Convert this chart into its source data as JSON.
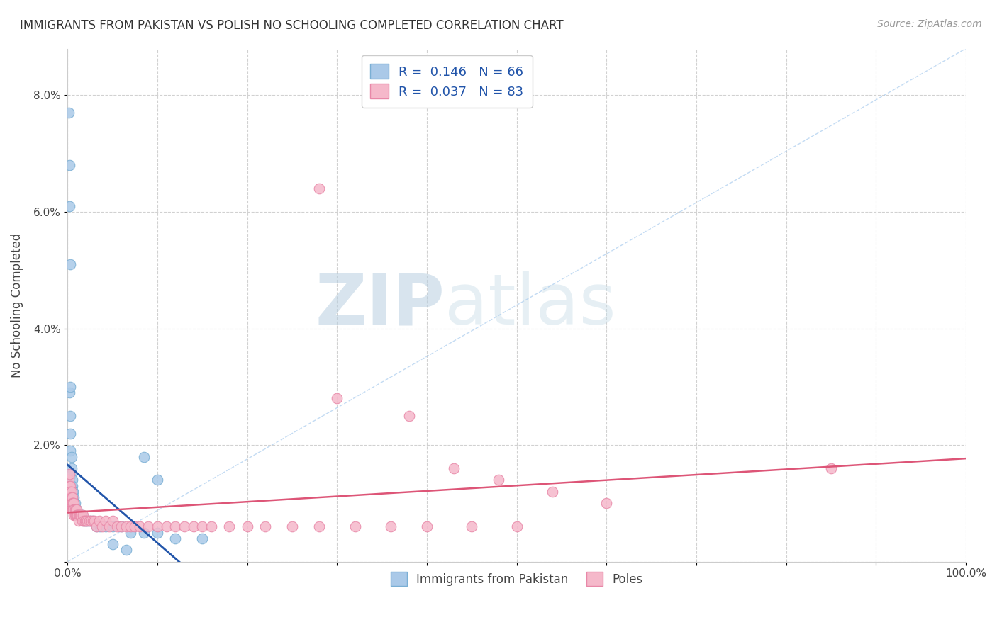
{
  "title": "IMMIGRANTS FROM PAKISTAN VS POLISH NO SCHOOLING COMPLETED CORRELATION CHART",
  "source": "Source: ZipAtlas.com",
  "ylabel": "No Schooling Completed",
  "xlabel": "",
  "xlim": [
    0,
    1.0
  ],
  "ylim": [
    0,
    0.088
  ],
  "xticks": [
    0.0,
    1.0
  ],
  "xticklabels": [
    "0.0%",
    "100.0%"
  ],
  "yticks": [
    0.0,
    0.02,
    0.04,
    0.06,
    0.08
  ],
  "yticklabels": [
    "",
    "2.0%",
    "4.0%",
    "6.0%",
    "8.0%"
  ],
  "pakistan_color": "#aac9e8",
  "pakistan_edge": "#7aafd4",
  "poles_color": "#f5b8ca",
  "poles_edge": "#e888a8",
  "trend_pakistan_color": "#2255aa",
  "trend_poles_color": "#dd5577",
  "R_pakistan": 0.146,
  "N_pakistan": 66,
  "R_poles": 0.037,
  "N_poles": 83,
  "legend_labels": [
    "Immigrants from Pakistan",
    "Poles"
  ],
  "pakistan_x": [
    0.001,
    0.002,
    0.002,
    0.003,
    0.003,
    0.003,
    0.003,
    0.004,
    0.004,
    0.004,
    0.004,
    0.005,
    0.005,
    0.005,
    0.005,
    0.005,
    0.006,
    0.006,
    0.006,
    0.006,
    0.006,
    0.006,
    0.007,
    0.007,
    0.007,
    0.007,
    0.007,
    0.008,
    0.008,
    0.008,
    0.008,
    0.009,
    0.009,
    0.009,
    0.009,
    0.01,
    0.01,
    0.01,
    0.011,
    0.011,
    0.012,
    0.013,
    0.014,
    0.015,
    0.016,
    0.018,
    0.02,
    0.022,
    0.025,
    0.028,
    0.032,
    0.036,
    0.042,
    0.05,
    0.06,
    0.07,
    0.085,
    0.1,
    0.12,
    0.15,
    0.05,
    0.065,
    0.002,
    0.003,
    0.085,
    0.1
  ],
  "pakistan_y": [
    0.077,
    0.068,
    0.029,
    0.03,
    0.025,
    0.022,
    0.019,
    0.018,
    0.016,
    0.015,
    0.013,
    0.014,
    0.013,
    0.012,
    0.012,
    0.011,
    0.012,
    0.011,
    0.011,
    0.01,
    0.01,
    0.01,
    0.011,
    0.01,
    0.01,
    0.009,
    0.009,
    0.01,
    0.009,
    0.009,
    0.009,
    0.009,
    0.009,
    0.008,
    0.008,
    0.009,
    0.008,
    0.008,
    0.008,
    0.008,
    0.008,
    0.008,
    0.008,
    0.008,
    0.008,
    0.007,
    0.007,
    0.007,
    0.007,
    0.007,
    0.006,
    0.006,
    0.006,
    0.006,
    0.006,
    0.005,
    0.005,
    0.005,
    0.004,
    0.004,
    0.003,
    0.002,
    0.061,
    0.051,
    0.018,
    0.014
  ],
  "poles_x": [
    0.001,
    0.001,
    0.002,
    0.002,
    0.002,
    0.003,
    0.003,
    0.003,
    0.003,
    0.004,
    0.004,
    0.004,
    0.004,
    0.005,
    0.005,
    0.005,
    0.006,
    0.006,
    0.006,
    0.007,
    0.007,
    0.007,
    0.008,
    0.008,
    0.009,
    0.009,
    0.01,
    0.01,
    0.011,
    0.011,
    0.012,
    0.012,
    0.013,
    0.014,
    0.015,
    0.016,
    0.017,
    0.018,
    0.019,
    0.02,
    0.022,
    0.024,
    0.026,
    0.028,
    0.03,
    0.032,
    0.035,
    0.038,
    0.042,
    0.046,
    0.05,
    0.055,
    0.06,
    0.065,
    0.07,
    0.075,
    0.08,
    0.09,
    0.1,
    0.11,
    0.12,
    0.13,
    0.14,
    0.15,
    0.16,
    0.18,
    0.2,
    0.22,
    0.25,
    0.28,
    0.32,
    0.36,
    0.4,
    0.45,
    0.5,
    0.3,
    0.38,
    0.43,
    0.48,
    0.54,
    0.6,
    0.85,
    0.28
  ],
  "poles_y": [
    0.014,
    0.012,
    0.015,
    0.013,
    0.011,
    0.013,
    0.012,
    0.011,
    0.01,
    0.012,
    0.011,
    0.01,
    0.009,
    0.011,
    0.01,
    0.009,
    0.01,
    0.009,
    0.009,
    0.01,
    0.009,
    0.008,
    0.009,
    0.008,
    0.009,
    0.008,
    0.009,
    0.008,
    0.008,
    0.008,
    0.008,
    0.007,
    0.008,
    0.008,
    0.008,
    0.007,
    0.008,
    0.007,
    0.007,
    0.007,
    0.007,
    0.007,
    0.007,
    0.007,
    0.007,
    0.006,
    0.007,
    0.006,
    0.007,
    0.006,
    0.007,
    0.006,
    0.006,
    0.006,
    0.006,
    0.006,
    0.006,
    0.006,
    0.006,
    0.006,
    0.006,
    0.006,
    0.006,
    0.006,
    0.006,
    0.006,
    0.006,
    0.006,
    0.006,
    0.006,
    0.006,
    0.006,
    0.006,
    0.006,
    0.006,
    0.028,
    0.025,
    0.016,
    0.014,
    0.012,
    0.01,
    0.016,
    0.064
  ],
  "watermark_zip": "ZIP",
  "watermark_atlas": "atlas",
  "background_color": "#ffffff",
  "grid_color": "#cccccc",
  "grid_linestyle": "--"
}
